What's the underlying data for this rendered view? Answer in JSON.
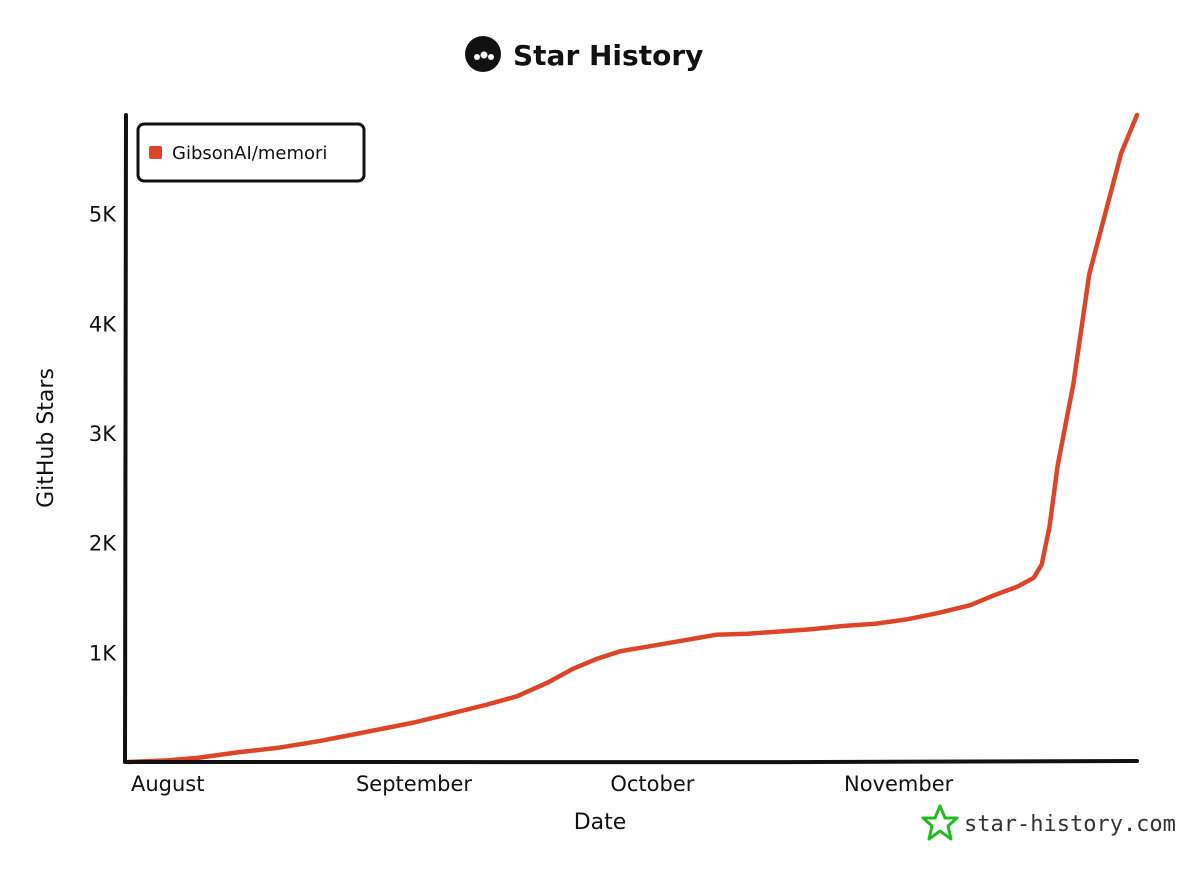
{
  "chart_data": {
    "type": "line",
    "title": "Star History",
    "xlabel": "Date",
    "ylabel": "GitHub Stars",
    "x_ticks": [
      "August",
      "September",
      "October",
      "November"
    ],
    "y_ticks": [
      "1K",
      "2K",
      "3K",
      "4K",
      "5K"
    ],
    "ylim": [
      0,
      5900
    ],
    "legend_position": "top-left",
    "grid": false,
    "series": [
      {
        "name": "GibsonAI/memori",
        "color": "#dd4528",
        "points": [
          [
            "2025-07-27",
            0
          ],
          [
            "2025-08-01",
            15
          ],
          [
            "2025-08-05",
            40
          ],
          [
            "2025-08-10",
            90
          ],
          [
            "2025-08-15",
            130
          ],
          [
            "2025-08-20",
            190
          ],
          [
            "2025-08-25",
            260
          ],
          [
            "2025-09-01",
            360
          ],
          [
            "2025-09-05",
            430
          ],
          [
            "2025-09-10",
            520
          ],
          [
            "2025-09-14",
            600
          ],
          [
            "2025-09-18",
            730
          ],
          [
            "2025-09-21",
            850
          ],
          [
            "2025-09-24",
            940
          ],
          [
            "2025-09-27",
            1010
          ],
          [
            "2025-10-01",
            1060
          ],
          [
            "2025-10-05",
            1110
          ],
          [
            "2025-10-09",
            1160
          ],
          [
            "2025-10-13",
            1170
          ],
          [
            "2025-10-17",
            1190
          ],
          [
            "2025-10-21",
            1210
          ],
          [
            "2025-10-25",
            1240
          ],
          [
            "2025-10-29",
            1260
          ],
          [
            "2025-11-02",
            1300
          ],
          [
            "2025-11-06",
            1360
          ],
          [
            "2025-11-10",
            1430
          ],
          [
            "2025-11-13",
            1520
          ],
          [
            "2025-11-16",
            1600
          ],
          [
            "2025-11-18",
            1680
          ],
          [
            "2025-11-19",
            1800
          ],
          [
            "2025-11-20",
            2150
          ],
          [
            "2025-11-21",
            2700
          ],
          [
            "2025-11-23",
            3450
          ],
          [
            "2025-11-25",
            4450
          ],
          [
            "2025-11-27",
            5000
          ],
          [
            "2025-11-29",
            5550
          ],
          [
            "2025-12-01",
            5900
          ]
        ]
      }
    ]
  },
  "branding": {
    "logo_icon": "star-history-logo-icon",
    "watermark_icon": "star-outline-icon",
    "watermark_text": "star-history.com",
    "watermark_color": "#22bb22"
  }
}
